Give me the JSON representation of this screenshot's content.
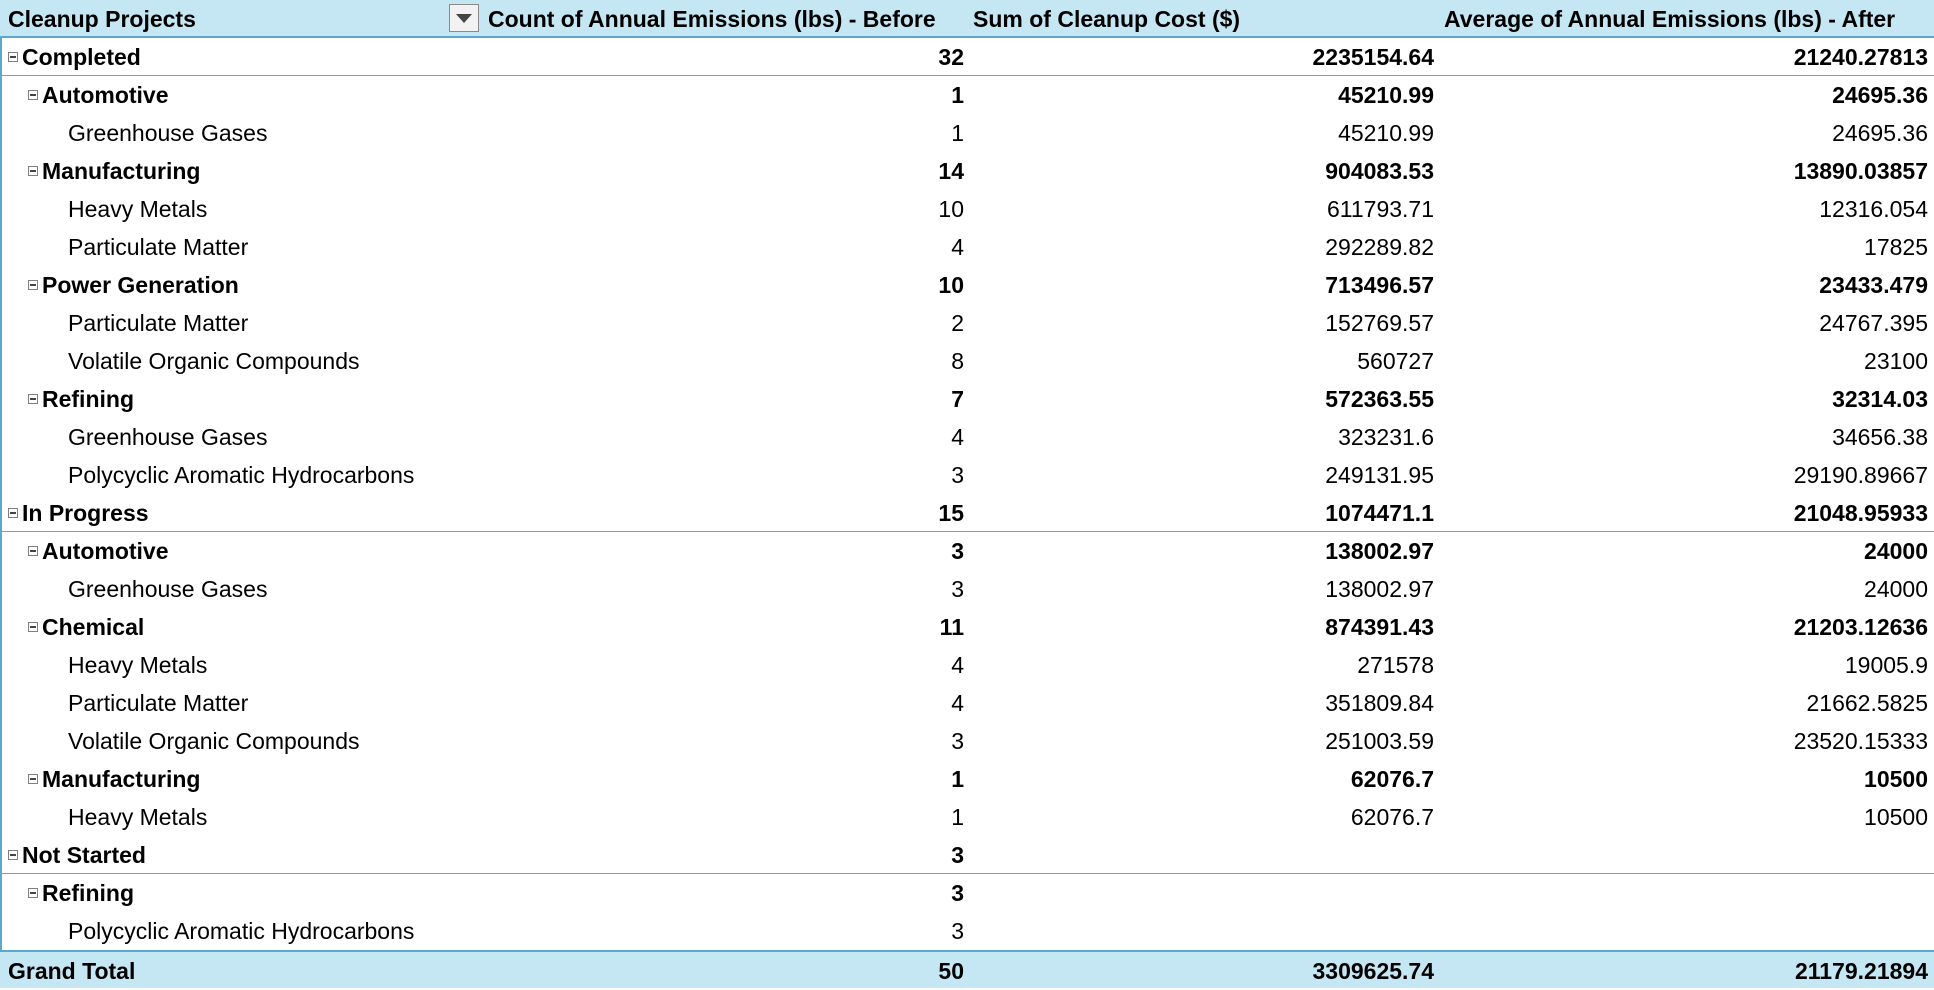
{
  "header": {
    "row_label": "Cleanup Projects",
    "col1": "Count of Annual Emissions (lbs) - Before",
    "col2": "Sum of Cleanup Cost ($)",
    "col3": "Average of Annual Emissions (lbs) - After",
    "filter_icon": "dropdown-arrow-icon"
  },
  "rows": [
    {
      "level": 0,
      "label": "Completed",
      "c1": "32",
      "c2": "2235154.64",
      "c3": "21240.27813"
    },
    {
      "level": 1,
      "label": "Automotive",
      "c1": "1",
      "c2": "45210.99",
      "c3": "24695.36"
    },
    {
      "level": 2,
      "label": "Greenhouse Gases",
      "c1": "1",
      "c2": "45210.99",
      "c3": "24695.36"
    },
    {
      "level": 1,
      "label": "Manufacturing",
      "c1": "14",
      "c2": "904083.53",
      "c3": "13890.03857"
    },
    {
      "level": 2,
      "label": "Heavy Metals",
      "c1": "10",
      "c2": "611793.71",
      "c3": "12316.054"
    },
    {
      "level": 2,
      "label": "Particulate Matter",
      "c1": "4",
      "c2": "292289.82",
      "c3": "17825"
    },
    {
      "level": 1,
      "label": "Power Generation",
      "c1": "10",
      "c2": "713496.57",
      "c3": "23433.479"
    },
    {
      "level": 2,
      "label": "Particulate Matter",
      "c1": "2",
      "c2": "152769.57",
      "c3": "24767.395"
    },
    {
      "level": 2,
      "label": "Volatile Organic Compounds",
      "c1": "8",
      "c2": "560727",
      "c3": "23100"
    },
    {
      "level": 1,
      "label": "Refining",
      "c1": "7",
      "c2": "572363.55",
      "c3": "32314.03"
    },
    {
      "level": 2,
      "label": "Greenhouse Gases",
      "c1": "4",
      "c2": "323231.6",
      "c3": "34656.38"
    },
    {
      "level": 2,
      "label": "Polycyclic Aromatic Hydrocarbons",
      "c1": "3",
      "c2": "249131.95",
      "c3": "29190.89667"
    },
    {
      "level": 0,
      "label": "In Progress",
      "c1": "15",
      "c2": "1074471.1",
      "c3": "21048.95933"
    },
    {
      "level": 1,
      "label": "Automotive",
      "c1": "3",
      "c2": "138002.97",
      "c3": "24000"
    },
    {
      "level": 2,
      "label": "Greenhouse Gases",
      "c1": "3",
      "c2": "138002.97",
      "c3": "24000"
    },
    {
      "level": 1,
      "label": "Chemical",
      "c1": "11",
      "c2": "874391.43",
      "c3": "21203.12636"
    },
    {
      "level": 2,
      "label": "Heavy Metals",
      "c1": "4",
      "c2": "271578",
      "c3": "19005.9"
    },
    {
      "level": 2,
      "label": "Particulate Matter",
      "c1": "4",
      "c2": "351809.84",
      "c3": "21662.5825"
    },
    {
      "level": 2,
      "label": "Volatile Organic Compounds",
      "c1": "3",
      "c2": "251003.59",
      "c3": "23520.15333"
    },
    {
      "level": 1,
      "label": "Manufacturing",
      "c1": "1",
      "c2": "62076.7",
      "c3": "10500"
    },
    {
      "level": 2,
      "label": "Heavy Metals",
      "c1": "1",
      "c2": "62076.7",
      "c3": "10500"
    },
    {
      "level": 0,
      "label": "Not Started",
      "c1": "3",
      "c2": "",
      "c3": ""
    },
    {
      "level": 1,
      "label": "Refining",
      "c1": "3",
      "c2": "",
      "c3": ""
    },
    {
      "level": 2,
      "label": "Polycyclic Aromatic Hydrocarbons",
      "c1": "3",
      "c2": "",
      "c3": ""
    }
  ],
  "total": {
    "label": "Grand Total",
    "c1": "50",
    "c2": "3309625.74",
    "c3": "21179.21894"
  }
}
